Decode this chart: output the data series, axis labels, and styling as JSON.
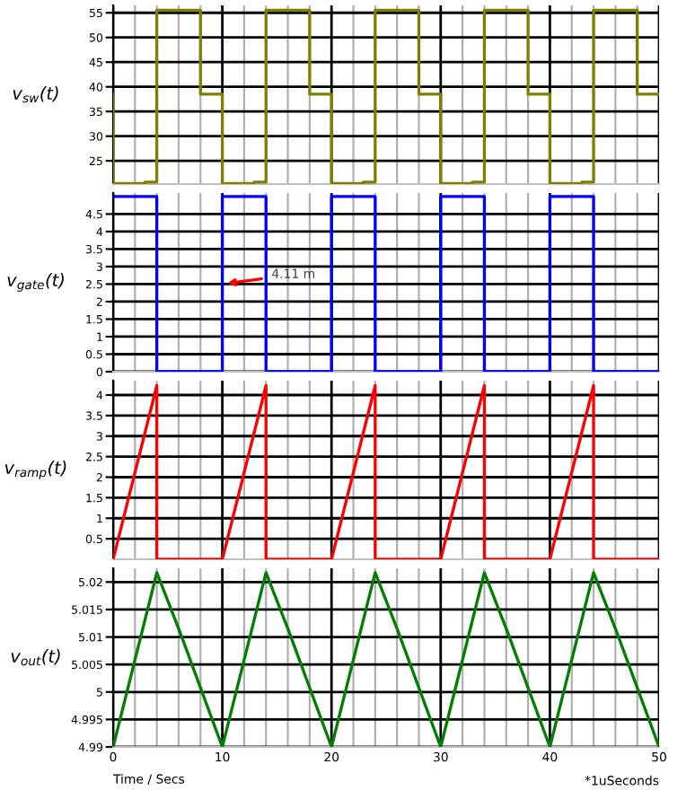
{
  "chart_data": [
    {
      "type": "line",
      "ylabel": "v$_{sw}$(t)",
      "xlim": [
        0,
        50
      ],
      "ylim": [
        20.3,
        56.5
      ],
      "yticks": [
        25,
        30,
        35,
        40,
        45,
        50,
        55
      ],
      "tick_labels": "y",
      "grid": true,
      "xticks": [
        0,
        {
          "value": 2,
          "label": null
        },
        {
          "value": 4,
          "label": null
        },
        {
          "value": 6,
          "label": null
        },
        {
          "value": 8,
          "label": null
        },
        10,
        {
          "value": 12,
          "label": null
        },
        {
          "value": 14,
          "label": null
        },
        {
          "value": 16,
          "label": null
        },
        {
          "value": 18,
          "label": null
        },
        20,
        {
          "value": 22,
          "label": null
        },
        {
          "value": 24,
          "label": null
        },
        {
          "value": 26,
          "label": null
        },
        {
          "value": 28,
          "label": null
        },
        30,
        {
          "value": 32,
          "label": null
        },
        {
          "value": 34,
          "label": null
        },
        {
          "value": 36,
          "label": null
        },
        {
          "value": 38,
          "label": null
        },
        40,
        {
          "value": 42,
          "label": null
        },
        {
          "value": 44,
          "label": null
        },
        {
          "value": 46,
          "label": null
        },
        {
          "value": 48,
          "label": null
        },
        50
      ],
      "series": [
        {
          "color": "#808000",
          "x": [
            0,
            0,
            2.9,
            2.9,
            4,
            4,
            8,
            8,
            10,
            10,
            12.9,
            12.9,
            14,
            14,
            18,
            18,
            20,
            20,
            22.9,
            22.9,
            24,
            24,
            28,
            28,
            30,
            30,
            32.9,
            32.9,
            34,
            34,
            38,
            38,
            40,
            40,
            42.9,
            42.9,
            44,
            44,
            48,
            48,
            50
          ],
          "values": [
            38.5,
            20.4,
            20.4,
            20.7,
            20.7,
            55.5,
            55.5,
            38.5,
            38.5,
            20.4,
            20.4,
            20.7,
            20.7,
            55.5,
            55.5,
            38.5,
            38.5,
            20.4,
            20.4,
            20.7,
            20.7,
            55.5,
            55.5,
            38.5,
            38.5,
            20.4,
            20.4,
            20.7,
            20.7,
            55.5,
            55.5,
            38.5,
            38.5,
            20.4,
            20.4,
            20.7,
            20.7,
            55.5,
            55.5,
            38.5,
            38.5
          ]
        }
      ]
    },
    {
      "type": "line",
      "ylabel": "v$_{gate}$(t)",
      "xlim": [
        0,
        50
      ],
      "ylim": [
        0,
        5.1
      ],
      "yticks": [
        0,
        0.5,
        1,
        1.5,
        2,
        2.5,
        3,
        3.5,
        4,
        4.5
      ],
      "tick_labels": "y",
      "grid": true,
      "xticks": [
        0,
        {
          "value": 2,
          "label": null
        },
        {
          "value": 4,
          "label": null
        },
        {
          "value": 6,
          "label": null
        },
        {
          "value": 8,
          "label": null
        },
        10,
        {
          "value": 12,
          "label": null
        },
        {
          "value": 14,
          "label": null
        },
        {
          "value": 16,
          "label": null
        },
        {
          "value": 18,
          "label": null
        },
        20,
        {
          "value": 22,
          "label": null
        },
        {
          "value": 24,
          "label": null
        },
        {
          "value": 26,
          "label": null
        },
        {
          "value": 28,
          "label": null
        },
        30,
        {
          "value": 32,
          "label": null
        },
        {
          "value": 34,
          "label": null
        },
        {
          "value": 36,
          "label": null
        },
        {
          "value": 38,
          "label": null
        },
        40,
        {
          "value": 42,
          "label": null
        },
        {
          "value": 44,
          "label": null
        },
        {
          "value": 46,
          "label": null
        },
        {
          "value": 48,
          "label": null
        },
        50
      ],
      "annotations": [
        {
          "text": "4.11 m",
          "x": 10,
          "y": 2.5
        }
      ],
      "series": [
        {
          "color": "#0000ff",
          "x": [
            0,
            4,
            4,
            10,
            10,
            14,
            14,
            20,
            20,
            24,
            24,
            30,
            30,
            34,
            34,
            40,
            40,
            44,
            44,
            50
          ],
          "values": [
            5,
            5,
            0,
            0,
            5,
            5,
            0,
            0,
            5,
            5,
            0,
            0,
            5,
            5,
            0,
            0,
            5,
            5,
            0,
            0
          ]
        }
      ]
    },
    {
      "type": "line",
      "ylabel": "v$_{ramp}$(t)",
      "xlim": [
        0,
        50
      ],
      "ylim": [
        0,
        4.35
      ],
      "yticks": [
        0.5,
        1,
        1.5,
        2,
        2.5,
        3,
        3.5,
        4
      ],
      "tick_labels": "y",
      "grid": true,
      "xticks": [
        0,
        {
          "value": 2,
          "label": null
        },
        {
          "value": 4,
          "label": null
        },
        {
          "value": 6,
          "label": null
        },
        {
          "value": 8,
          "label": null
        },
        10,
        {
          "value": 12,
          "label": null
        },
        {
          "value": 14,
          "label": null
        },
        {
          "value": 16,
          "label": null
        },
        {
          "value": 18,
          "label": null
        },
        20,
        {
          "value": 22,
          "label": null
        },
        {
          "value": 24,
          "label": null
        },
        {
          "value": 26,
          "label": null
        },
        {
          "value": 28,
          "label": null
        },
        30,
        {
          "value": 32,
          "label": null
        },
        {
          "value": 34,
          "label": null
        },
        {
          "value": 36,
          "label": null
        },
        {
          "value": 38,
          "label": null
        },
        40,
        {
          "value": 42,
          "label": null
        },
        {
          "value": 44,
          "label": null
        },
        {
          "value": 46,
          "label": null
        },
        {
          "value": 48,
          "label": null
        },
        50
      ],
      "series": [
        {
          "color": "#ff0000",
          "x": [
            0,
            4,
            4,
            10,
            14,
            14,
            20,
            24,
            24,
            30,
            34,
            34,
            40,
            44,
            44,
            50
          ],
          "values": [
            0,
            4.23,
            0,
            0,
            4.23,
            0,
            0,
            4.23,
            0,
            0,
            4.23,
            0,
            0,
            4.23,
            0,
            0
          ]
        }
      ]
    },
    {
      "type": "line",
      "ylabel": "v$_{out}$(t)",
      "xlabel": "Time / Secs",
      "annotations": [
        "*1uSeconds"
      ],
      "xlim": [
        0,
        50
      ],
      "ylim": [
        4.99,
        5.0225
      ],
      "yticks": [
        4.99,
        4.995,
        5,
        5.005,
        5.01,
        5.015,
        5.02
      ],
      "grid": true,
      "xticks": [
        0,
        {
          "value": 2,
          "label": null
        },
        {
          "value": 4,
          "label": null
        },
        {
          "value": 6,
          "label": null
        },
        {
          "value": 8,
          "label": null
        },
        10,
        {
          "value": 12,
          "label": null
        },
        {
          "value": 14,
          "label": null
        },
        {
          "value": 16,
          "label": null
        },
        {
          "value": 18,
          "label": null
        },
        20,
        {
          "value": 22,
          "label": null
        },
        {
          "value": 24,
          "label": null
        },
        {
          "value": 26,
          "label": null
        },
        {
          "value": 28,
          "label": null
        },
        30,
        {
          "value": 32,
          "label": null
        },
        {
          "value": 34,
          "label": null
        },
        {
          "value": 36,
          "label": null
        },
        {
          "value": 38,
          "label": null
        },
        40,
        {
          "value": 42,
          "label": null
        },
        {
          "value": 44,
          "label": null
        },
        {
          "value": 46,
          "label": null
        },
        {
          "value": 48,
          "label": null
        },
        50
      ],
      "series": [
        {
          "color": "#008000",
          "x": [
            0,
            4,
            6.1,
            10,
            14,
            16.1,
            20,
            24,
            26.1,
            30,
            34,
            36.1,
            40,
            44,
            46.1,
            50
          ],
          "values": [
            4.99,
            5.0217,
            5.011,
            4.99,
            5.0217,
            5.011,
            4.99,
            5.0217,
            5.011,
            4.99,
            5.0217,
            5.011,
            4.99,
            5.0217,
            5.011,
            4.99
          ]
        }
      ]
    }
  ]
}
